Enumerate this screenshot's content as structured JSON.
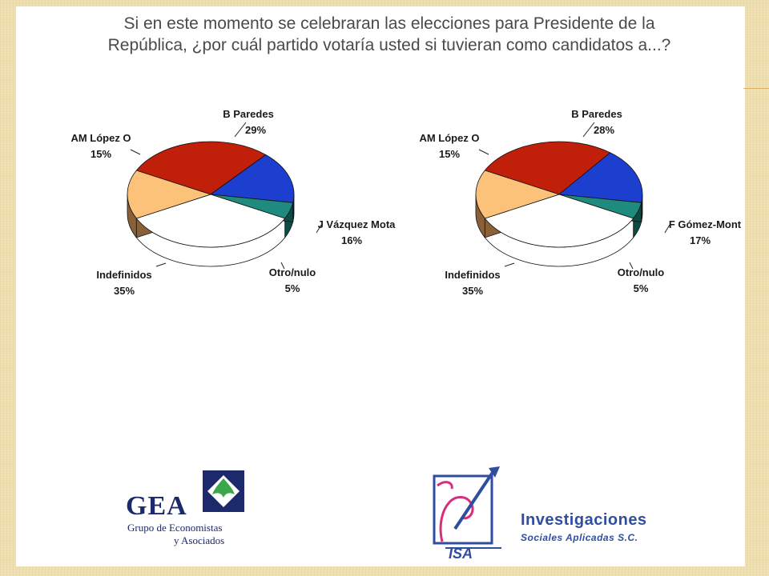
{
  "title": {
    "line1": "Si en este momento se celebraran las elecciones para Presidente de la",
    "line2": "República, ¿por cuál partido votaría usted si tuvieran como candidatos a...?"
  },
  "chart_data": [
    {
      "type": "pie",
      "slices": [
        {
          "name": "B Paredes",
          "value": 29,
          "label": "29%",
          "color": "#c01f0a",
          "side": "#7e1406"
        },
        {
          "name": "J Vázquez Mota",
          "value": 16,
          "label": "16%",
          "color": "#1c3fcf",
          "side": "#0d1f78"
        },
        {
          "name": "Otro/nulo",
          "value": 5,
          "label": "5%",
          "color": "#1f8a7e",
          "side": "#0b4c46"
        },
        {
          "name": "Indefinidos",
          "value": 35,
          "label": "35%",
          "color": "#ffffff",
          "side": "#ffffff"
        },
        {
          "name": "AM López O",
          "value": 15,
          "label": "15%",
          "color": "#fdc27a",
          "side": "#8a6038"
        }
      ]
    },
    {
      "type": "pie",
      "slices": [
        {
          "name": "B Paredes",
          "value": 28,
          "label": "28%",
          "color": "#c01f0a",
          "side": "#7e1406"
        },
        {
          "name": "F Gómez-Mont",
          "value": 17,
          "label": "17%",
          "color": "#1c3fcf",
          "side": "#0d1f78"
        },
        {
          "name": "Otro/nulo",
          "value": 5,
          "label": "5%",
          "color": "#1f8a7e",
          "side": "#0b4c46"
        },
        {
          "name": "Indefinidos",
          "value": 35,
          "label": "35%",
          "color": "#ffffff",
          "side": "#ffffff"
        },
        {
          "name": "AM López O",
          "value": 15,
          "label": "15%",
          "color": "#fdc27a",
          "side": "#8a6038"
        }
      ]
    }
  ],
  "logos": {
    "gea": {
      "name": "GEA",
      "line1": "Grupo de Economistas",
      "line2": "y Asociados"
    },
    "isa": {
      "name": "Investigaciones",
      "subtitle": "Sociales Aplicadas S.C.",
      "mark_text": "ISA"
    }
  }
}
